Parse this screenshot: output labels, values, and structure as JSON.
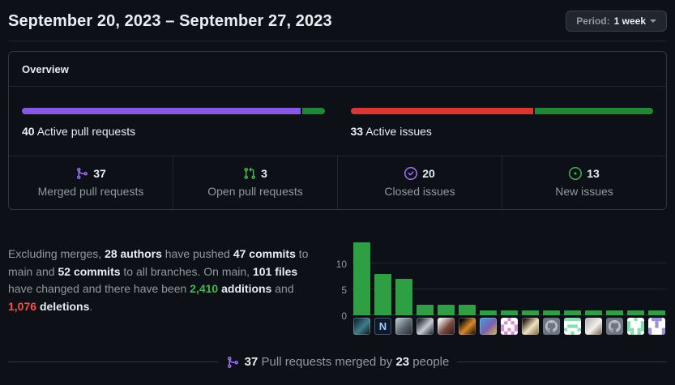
{
  "header": {
    "title": "September 20, 2023 – September 27, 2023",
    "period": {
      "prefix": "Period:",
      "value": "1 week"
    }
  },
  "overview": {
    "title": "Overview",
    "pull_requests": {
      "count": "40",
      "label": "Active pull requests",
      "segments": [
        {
          "name": "merged",
          "pct": 92.5,
          "color": "#8957e5"
        },
        {
          "name": "open",
          "pct": 7.5,
          "color": "#238636"
        }
      ]
    },
    "issues": {
      "count": "33",
      "label": "Active issues",
      "segments": [
        {
          "name": "closed",
          "pct": 60.6,
          "color": "#da3633"
        },
        {
          "name": "new",
          "pct": 39.4,
          "color": "#238636"
        }
      ]
    },
    "stats": [
      {
        "icon": "git-merge-icon",
        "color": "#a371f7",
        "value": "37",
        "label": "Merged pull requests"
      },
      {
        "icon": "git-pull-request-icon",
        "color": "#3fb950",
        "value": "3",
        "label": "Open pull requests"
      },
      {
        "icon": "issue-closed-icon",
        "color": "#a371f7",
        "value": "20",
        "label": "Closed issues"
      },
      {
        "icon": "issue-opened-icon",
        "color": "#3fb950",
        "value": "13",
        "label": "New issues"
      }
    ]
  },
  "summary": {
    "segments": [
      {
        "text": "Excluding merges, ",
        "style": "muted"
      },
      {
        "text": "28 authors",
        "style": "strong"
      },
      {
        "text": " have pushed ",
        "style": "muted"
      },
      {
        "text": "47 commits",
        "style": "strong"
      },
      {
        "text": " to main and ",
        "style": "muted"
      },
      {
        "text": "52 commits",
        "style": "strong"
      },
      {
        "text": " to all branches. On main, ",
        "style": "muted"
      },
      {
        "text": "101 files",
        "style": "strong"
      },
      {
        "text": " have changed and there have been ",
        "style": "muted"
      },
      {
        "text": "2,410",
        "style": "additions"
      },
      {
        "text": " ",
        "style": "muted"
      },
      {
        "text": "additions",
        "style": "strong"
      },
      {
        "text": " and ",
        "style": "muted"
      },
      {
        "text": "1,076",
        "style": "deletions"
      },
      {
        "text": " ",
        "style": "muted"
      },
      {
        "text": "deletions",
        "style": "strong"
      },
      {
        "text": ".",
        "style": "muted"
      }
    ]
  },
  "chart_data": {
    "type": "bar",
    "title": "",
    "values": [
      14,
      8,
      7,
      2,
      2,
      2,
      1,
      1,
      1,
      1,
      1,
      1,
      1,
      1,
      1
    ],
    "yticks": [
      0,
      5,
      10
    ],
    "ylim": [
      0,
      15
    ],
    "bar_color": "#2ea043",
    "grid": true,
    "avatars": [
      {
        "type": "photo",
        "colors": [
          "#16303c",
          "#3e7d8a",
          "#0b1014"
        ]
      },
      {
        "type": "letter",
        "label": "N",
        "fg": "#9ecbff",
        "bg": "#0c1a2b"
      },
      {
        "type": "photo",
        "colors": [
          "#aab4bc",
          "#5a646c",
          "#23282d"
        ]
      },
      {
        "type": "photo",
        "colors": [
          "#2b2f35",
          "#c7ccd4",
          "#101214"
        ]
      },
      {
        "type": "photo",
        "colors": [
          "#e9e5e0",
          "#7a4a42",
          "#221a18"
        ]
      },
      {
        "type": "photo",
        "colors": [
          "#050505",
          "#d98a2b",
          "#000000"
        ]
      },
      {
        "type": "photo",
        "colors": [
          "#4d8fd1",
          "#7c5fb0",
          "#d9b44a"
        ]
      },
      {
        "type": "identicon",
        "color": "#d48fd4",
        "seed": 3
      },
      {
        "type": "photo",
        "colors": [
          "#2c2115",
          "#efe3c2",
          "#7a6236"
        ]
      },
      {
        "type": "octocat"
      },
      {
        "type": "identicon",
        "color": "#89dcb0",
        "seed": 5
      },
      {
        "type": "photo",
        "colors": [
          "#bdbdbd",
          "#f2efe9",
          "#6d5a48"
        ]
      },
      {
        "type": "octocat"
      },
      {
        "type": "identicon",
        "color": "#89dcb0",
        "seed": 8
      },
      {
        "type": "identicon",
        "color": "#9a8fd8",
        "seed": 11
      }
    ]
  },
  "footer": {
    "icon": "git-merge-icon",
    "segments": [
      {
        "text": "37",
        "style": "strong"
      },
      {
        "text": " Pull requests merged by ",
        "style": "muted"
      },
      {
        "text": "23",
        "style": "strong"
      },
      {
        "text": " people",
        "style": "muted"
      }
    ]
  }
}
